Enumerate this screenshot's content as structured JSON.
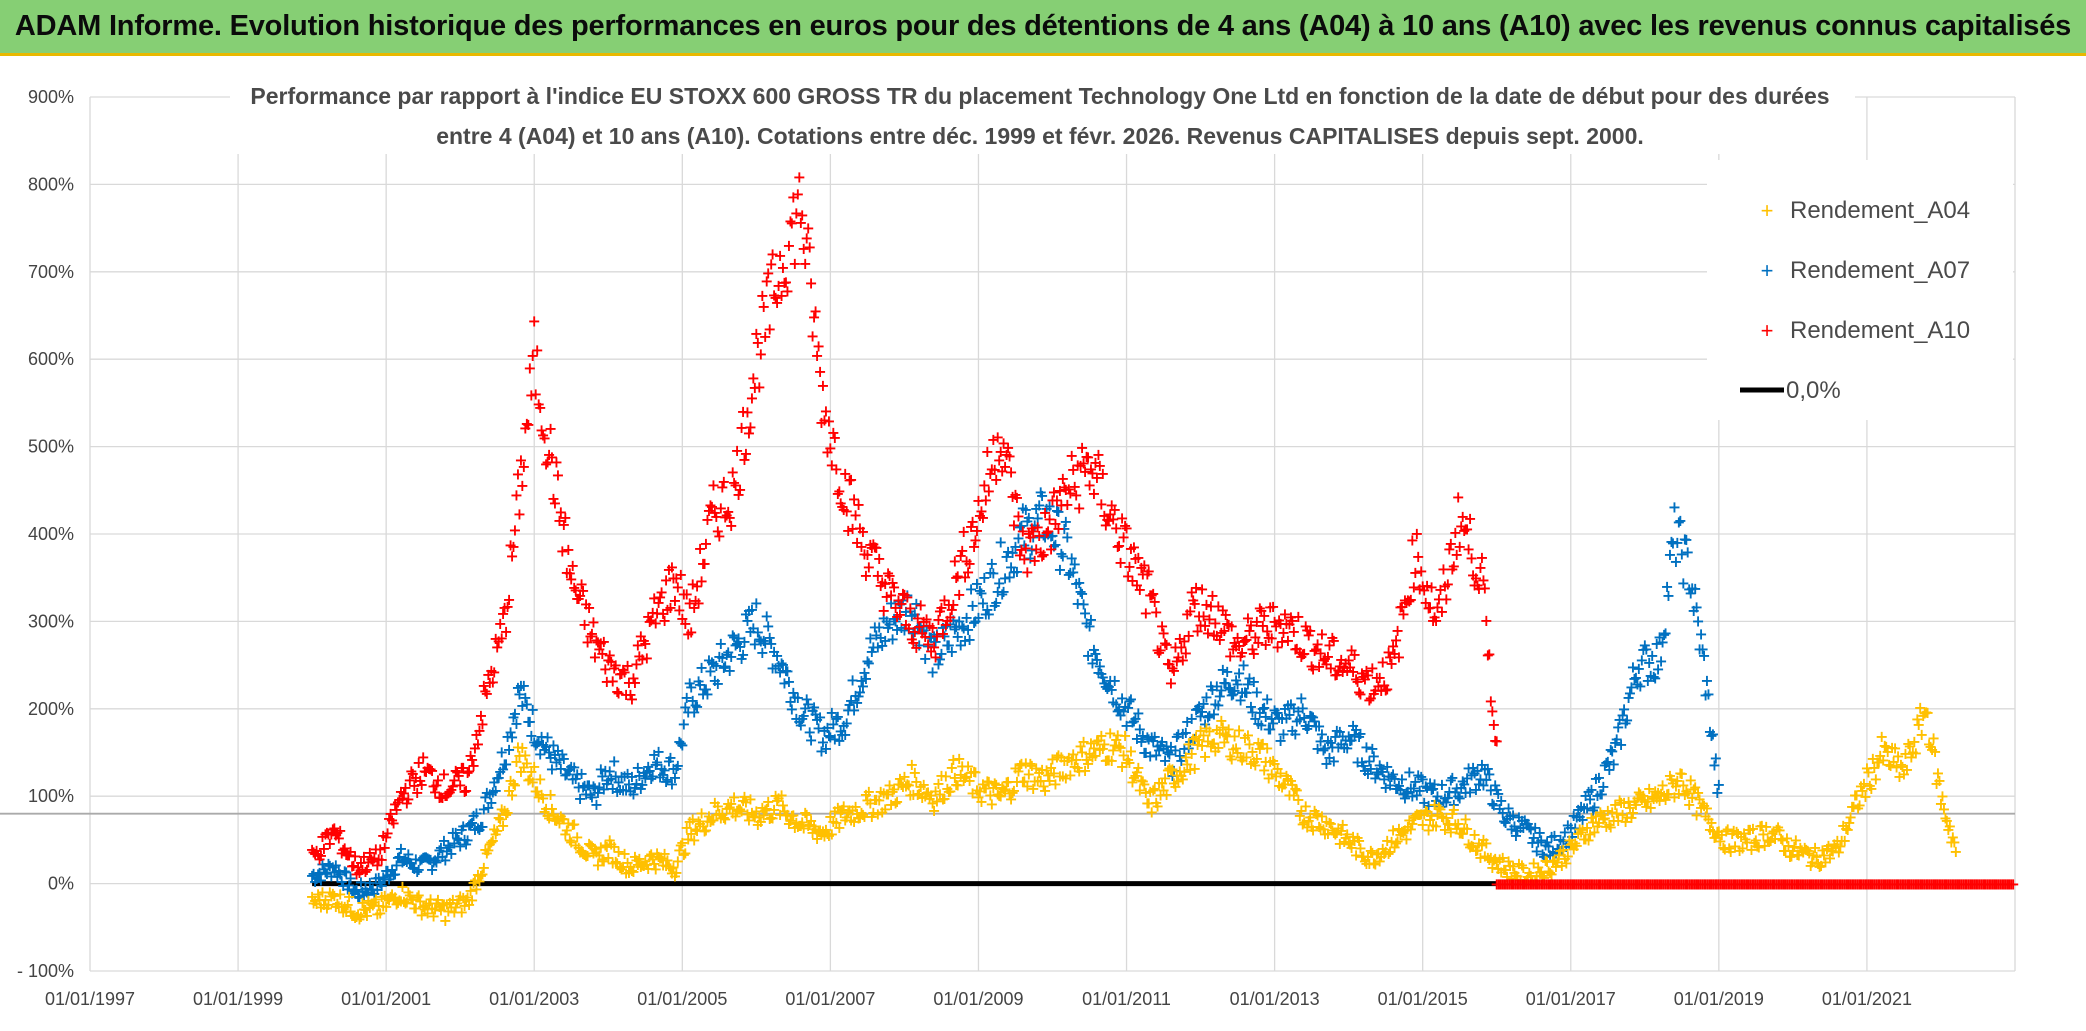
{
  "banner": {
    "title": "ADAM Informe. Evolution historique des performances en euros pour des détentions de 4 ans (A04) à 10 ans (A10) avec les revenus connus capitalisés"
  },
  "colors": {
    "banner_bg": "#86cf74",
    "banner_border": "#e8b800",
    "A04": "#ffc000",
    "A07": "#0070c0",
    "A10": "#ff0000",
    "zero": "#000000"
  },
  "chart_data": {
    "type": "scatter",
    "title_lines": [
      "Performance par rapport à l'indice EU STOXX 600 GROSS TR  du placement Technology One Ltd en fonction de la date de début pour des durées",
      "entre 4 (A04) et 10 ans (A10). Cotations entre déc. 1999 et févr. 2026. Revenus CAPITALISES depuis sept. 2000."
    ],
    "xlabel": "",
    "ylabel": "",
    "x_range": [
      1997.0,
      2023.0
    ],
    "ylim": [
      -100,
      900
    ],
    "y_ticks": [
      -100,
      0,
      100,
      200,
      300,
      400,
      500,
      600,
      700,
      800,
      900
    ],
    "y_tick_labels": [
      "- 100%",
      "0%",
      "100%",
      "200%",
      "300%",
      "400%",
      "500%",
      "600%",
      "700%",
      "800%",
      "900%"
    ],
    "x_ticks": [
      1997,
      1999,
      2001,
      2003,
      2005,
      2007,
      2009,
      2011,
      2013,
      2015,
      2017,
      2019,
      2021
    ],
    "x_tick_labels": [
      "01/01/1997",
      "01/01/1999",
      "01/01/2001",
      "01/01/2003",
      "01/01/2005",
      "01/01/2007",
      "01/01/2009",
      "01/01/2011",
      "01/01/2013",
      "01/01/2015",
      "01/01/2017",
      "01/01/2019",
      "01/01/2021"
    ],
    "reference_hline": 80,
    "legend_position": "top-right",
    "series": [
      {
        "name": "Rendement_A04",
        "marker": "+",
        "x": [
          2000.0,
          2000.3,
          2000.6,
          2000.9,
          2001.2,
          2001.5,
          2001.8,
          2002.1,
          2002.3,
          2002.6,
          2002.8,
          2003.0,
          2003.2,
          2003.5,
          2003.8,
          2004.0,
          2004.3,
          2004.6,
          2004.9,
          2005.1,
          2005.4,
          2005.7,
          2006.0,
          2006.3,
          2006.6,
          2006.9,
          2007.2,
          2007.5,
          2007.8,
          2008.1,
          2008.4,
          2008.7,
          2009.0,
          2009.3,
          2009.6,
          2009.9,
          2010.2,
          2010.5,
          2010.8,
          2011.0,
          2011.3,
          2011.6,
          2011.9,
          2012.2,
          2012.5,
          2012.8,
          2013.1,
          2013.4,
          2013.7,
          2014.0,
          2014.3,
          2014.6,
          2014.9,
          2015.2,
          2015.5,
          2015.8,
          2016.1,
          2016.4,
          2016.7,
          2017.0,
          2017.3,
          2017.6,
          2017.9,
          2018.2,
          2018.5,
          2018.8,
          2019.1,
          2019.4,
          2019.7,
          2020.0,
          2020.3,
          2020.6,
          2020.9,
          2021.2,
          2021.5,
          2021.8,
          2022.0,
          2022.2
        ],
        "y": [
          -20,
          -15,
          -30,
          -28,
          -10,
          -25,
          -30,
          -20,
          20,
          80,
          150,
          120,
          90,
          60,
          30,
          40,
          20,
          30,
          20,
          60,
          80,
          90,
          80,
          90,
          70,
          60,
          80,
          90,
          100,
          120,
          100,
          130,
          110,
          100,
          130,
          120,
          140,
          150,
          160,
          150,
          90,
          120,
          150,
          170,
          160,
          150,
          120,
          80,
          70,
          50,
          30,
          50,
          70,
          80,
          70,
          40,
          20,
          10,
          20,
          40,
          70,
          80,
          90,
          100,
          120,
          80,
          50,
          50,
          60,
          40,
          30,
          40,
          100,
          150,
          130,
          200,
          100,
          40
        ]
      },
      {
        "name": "Rendement_A07",
        "marker": "+",
        "x": [
          2000.0,
          2000.3,
          2000.6,
          2000.9,
          2001.2,
          2001.5,
          2001.8,
          2002.1,
          2002.3,
          2002.6,
          2002.8,
          2003.0,
          2003.2,
          2003.5,
          2003.8,
          2004.0,
          2004.3,
          2004.6,
          2004.9,
          2005.1,
          2005.4,
          2005.7,
          2006.0,
          2006.3,
          2006.6,
          2006.9,
          2007.2,
          2007.5,
          2007.8,
          2008.1,
          2008.4,
          2008.7,
          2009.0,
          2009.3,
          2009.6,
          2009.9,
          2010.2,
          2010.5,
          2010.8,
          2011.0,
          2011.3,
          2011.6,
          2011.9,
          2012.2,
          2012.5,
          2012.8,
          2013.1,
          2013.4,
          2013.7,
          2014.0,
          2014.3,
          2014.6,
          2014.9,
          2015.2,
          2015.5,
          2015.8,
          2016.1,
          2016.4,
          2016.7,
          2017.0,
          2017.3,
          2017.6,
          2017.9,
          2018.2,
          2018.4,
          2018.6,
          2018.8,
          2019.0
        ],
        "y": [
          10,
          20,
          -10,
          0,
          30,
          20,
          40,
          60,
          80,
          150,
          220,
          180,
          150,
          120,
          100,
          130,
          110,
          140,
          130,
          210,
          240,
          270,
          300,
          260,
          200,
          170,
          190,
          260,
          300,
          320,
          260,
          290,
          320,
          360,
          400,
          420,
          380,
          280,
          230,
          200,
          160,
          140,
          180,
          220,
          240,
          200,
          180,
          200,
          150,
          170,
          140,
          120,
          110,
          100,
          110,
          130,
          80,
          60,
          40,
          60,
          100,
          150,
          250,
          260,
          400,
          360,
          250,
          100
        ]
      },
      {
        "name": "Rendement_A10",
        "marker": "+",
        "x": [
          2000.0,
          2000.3,
          2000.6,
          2000.9,
          2001.2,
          2001.5,
          2001.8,
          2002.1,
          2002.3,
          2002.6,
          2002.8,
          2003.0,
          2003.2,
          2003.5,
          2003.8,
          2004.0,
          2004.3,
          2004.6,
          2004.9,
          2005.1,
          2005.4,
          2005.7,
          2006.0,
          2006.3,
          2006.6,
          2006.9,
          2007.2,
          2007.5,
          2007.8,
          2008.1,
          2008.4,
          2008.7,
          2009.0,
          2009.3,
          2009.6,
          2009.9,
          2010.2,
          2010.5,
          2010.8,
          2011.0,
          2011.3,
          2011.6,
          2011.9,
          2012.2,
          2012.5,
          2012.8,
          2013.1,
          2013.4,
          2013.7,
          2014.0,
          2014.3,
          2014.6,
          2014.9,
          2015.2,
          2015.5,
          2015.8,
          2016.0
        ],
        "y": [
          30,
          60,
          20,
          30,
          100,
          130,
          110,
          120,
          200,
          300,
          450,
          600,
          500,
          350,
          280,
          250,
          230,
          300,
          350,
          300,
          420,
          450,
          600,
          700,
          780,
          550,
          450,
          380,
          330,
          300,
          280,
          350,
          420,
          520,
          380,
          400,
          450,
          480,
          420,
          380,
          330,
          230,
          320,
          310,
          270,
          290,
          300,
          280,
          260,
          250,
          230,
          250,
          380,
          300,
          420,
          350,
          150
        ]
      },
      {
        "name": "0,0%",
        "type": "line",
        "x": [
          2000.0,
          2023.0
        ],
        "y": [
          0,
          0
        ]
      }
    ],
    "zero_markers": {
      "color": "red",
      "x_range": [
        2016.0,
        2023.0
      ],
      "y": 0
    }
  }
}
